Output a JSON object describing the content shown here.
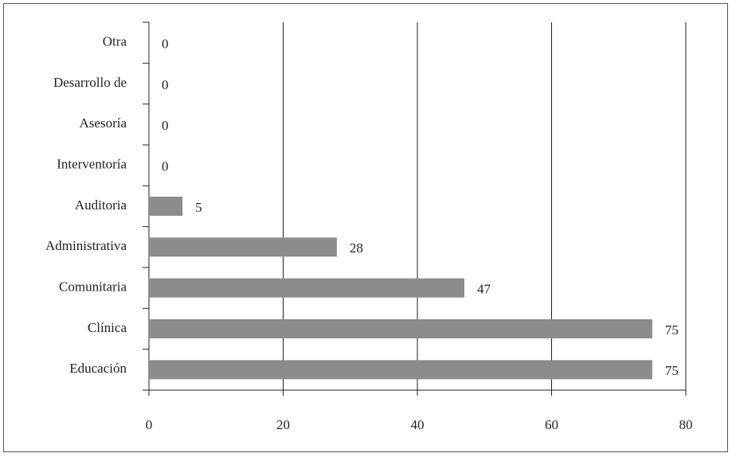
{
  "chart_data": {
    "type": "bar",
    "orientation": "horizontal",
    "categories": [
      "Otra",
      "Desarrollo de",
      "Asesoría",
      "Interventoría",
      "Auditoria",
      "Administrativa",
      "Comunitaria",
      "Clínica",
      "Educación"
    ],
    "values": [
      0,
      0,
      0,
      0,
      5,
      28,
      47,
      75,
      75
    ],
    "color": "#8c8c8c",
    "xlim": [
      0,
      80
    ],
    "xticks": [
      0,
      20,
      40,
      60,
      80
    ],
    "grid": true
  }
}
